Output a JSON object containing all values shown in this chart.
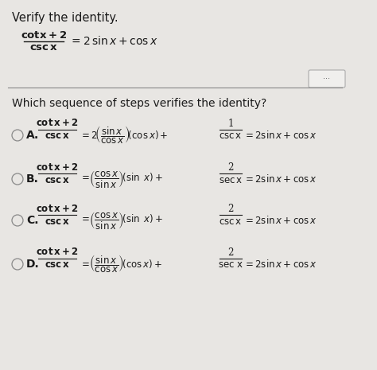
{
  "bg_color": "#e8e6e3",
  "title_text": "Verify the identity.",
  "main_identity_top": "cot x + 2",
  "main_identity_bottom": "csc x",
  "main_identity_rhs": "= 2 sin x + cos x",
  "question": "Which sequence of steps verifies the identity?",
  "options": [
    {
      "label": "A.",
      "lhs_top": "cot x + 2",
      "lhs_bot": "csc x",
      "rhs": "= 2\\left(\\dfrac{\\sin x}{\\cos x}\\right)(\\cos x) + \\dfrac{1}{\\csc x} = 2\\sin x + \\cos x"
    },
    {
      "label": "B.",
      "lhs_top": "cot x + 2",
      "lhs_bot": "csc x",
      "rhs": "= \\left(\\dfrac{\\cos x}{\\sin x}\\right)(\\sin\\ x) + \\dfrac{2}{\\sec x} = 2\\sin x + \\cos x"
    },
    {
      "label": "C.",
      "lhs_top": "cot x + 2",
      "lhs_bot": "csc x",
      "rhs": "= \\left(\\dfrac{\\cos x}{\\sin x}\\right)(\\sin\\ x) + \\dfrac{2}{\\csc x} = 2\\sin x + \\cos x"
    },
    {
      "label": "D.",
      "lhs_top": "cot x + 2",
      "lhs_bot": "csc x",
      "rhs": "= \\left(\\dfrac{\\sin x}{\\cos x}\\right)(\\cos x) + \\dfrac{2}{\\sec\\ x} = 2\\sin x + \\cos x"
    }
  ],
  "text_color": "#1a1a1a",
  "line_color": "#888888",
  "circle_color": "#888888"
}
